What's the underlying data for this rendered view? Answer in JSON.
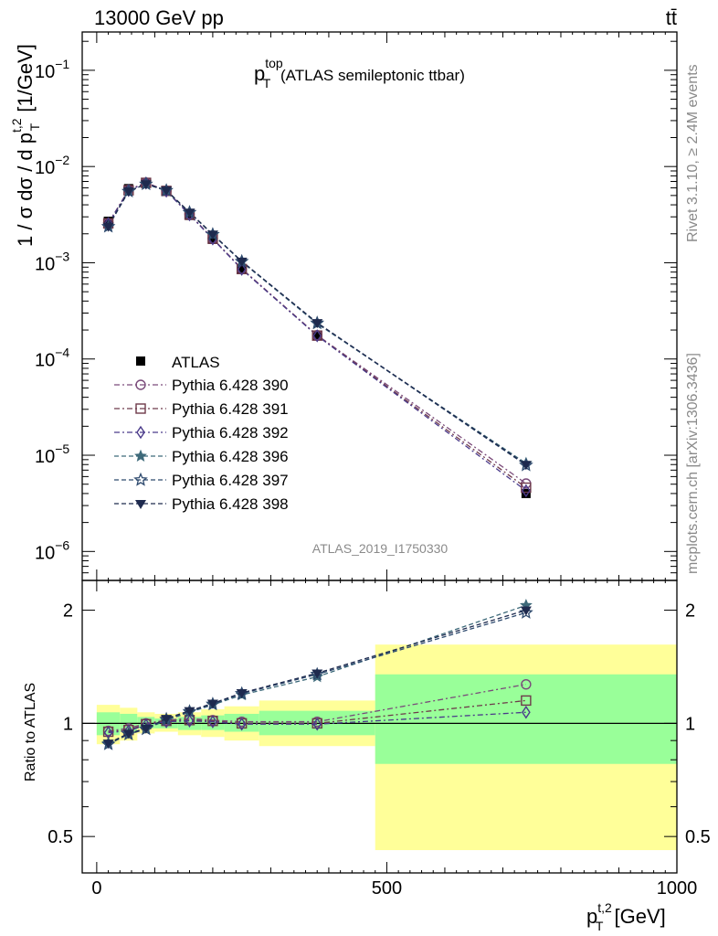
{
  "header": {
    "beam": "13000 GeV pp",
    "process": "tt̄",
    "rivet": "Rivet 3.1.10, ≥ 2.4M events",
    "mcplots": "mcplots.cern.ch [arXiv:1306.3436]",
    "analysis_id": "ATLAS_2019_I1750330"
  },
  "colors": {
    "band_inner": "#99ff99",
    "band_outer": "#ffff99",
    "data": "#000000"
  },
  "chart_data": {
    "type": "scatter",
    "title_main": "p",
    "title_sup": "top",
    "title_sub": "T",
    "title_rest": " (ATLAS semileptonic ttbar)",
    "xlabel_main": "p",
    "xlabel_sup": "t,2",
    "xlabel_sub": "T",
    "xlabel_rest": " [GeV]",
    "ylabel_main": "1 / σ dσ / d p",
    "ylabel_sup": "t,2",
    "ylabel_sub": "T",
    "ylabel_rest": " [1/GeV]",
    "ratio_ylabel": "Ratio to ATLAS",
    "xlim": [
      -25,
      1000
    ],
    "ylim": [
      5e-07,
      0.25
    ],
    "yscale": "log",
    "ratio_ylim": [
      0.4,
      2.4
    ],
    "ratio_yscale": "log",
    "x_ticks": [
      0,
      500,
      1000
    ],
    "y_ticks": [
      1e-06,
      1e-05,
      0.0001,
      0.001,
      0.01,
      0.1
    ],
    "y_tick_labels": [
      {
        "base": "10",
        "exp": "−6"
      },
      {
        "base": "10",
        "exp": "−5"
      },
      {
        "base": "10",
        "exp": "−4"
      },
      {
        "base": "10",
        "exp": "−3"
      },
      {
        "base": "10",
        "exp": "−2"
      },
      {
        "base": "10",
        "exp": "−1"
      }
    ],
    "ratio_ticks": [
      0.5,
      1,
      2
    ],
    "ratio_tick_labels": [
      "0.5",
      "1",
      "2"
    ],
    "legend_placement": "left-middle",
    "x": [
      20,
      55,
      85,
      120,
      160,
      200,
      250,
      380,
      740
    ],
    "bin_edges": [
      0,
      40,
      70,
      100,
      140,
      180,
      220,
      280,
      480,
      1000
    ],
    "data": {
      "name": "ATLAS",
      "values": [
        0.0027,
        0.0059,
        0.0068,
        0.0055,
        0.0031,
        0.00175,
        0.00086,
        0.000175,
        4e-06
      ],
      "ratio_band_inner": [
        [
          0.93,
          1.07
        ],
        [
          0.95,
          1.06
        ],
        [
          0.97,
          1.04
        ],
        [
          0.97,
          1.03
        ],
        [
          0.96,
          1.04
        ],
        [
          0.96,
          1.05
        ],
        [
          0.95,
          1.06
        ],
        [
          0.93,
          1.08
        ],
        [
          0.78,
          1.35
        ]
      ],
      "ratio_band_outer": [
        [
          0.88,
          1.12
        ],
        [
          0.9,
          1.1
        ],
        [
          0.94,
          1.07
        ],
        [
          0.95,
          1.06
        ],
        [
          0.93,
          1.07
        ],
        [
          0.92,
          1.09
        ],
        [
          0.9,
          1.11
        ],
        [
          0.87,
          1.15
        ],
        [
          0.46,
          1.62
        ]
      ]
    },
    "series": [
      {
        "name": "Pythia 6.428 390",
        "marker": "circle-open",
        "dash": "dashdot",
        "color": "#7a4a7a",
        "ratio": [
          0.955,
          0.97,
          1.0,
          1.02,
          1.03,
          1.02,
          1.01,
          1.01,
          1.27
        ]
      },
      {
        "name": "Pythia 6.428 391",
        "marker": "square-open",
        "dash": "dashdot",
        "color": "#6e3a4a",
        "ratio": [
          0.95,
          0.96,
          0.995,
          1.015,
          1.02,
          1.015,
          1.0,
          1.0,
          1.15
        ]
      },
      {
        "name": "Pythia 6.428 392",
        "marker": "diamond-open",
        "dash": "dashdot",
        "color": "#4a3a8a",
        "ratio": [
          0.945,
          0.955,
          0.99,
          1.01,
          1.015,
          1.01,
          0.995,
          0.995,
          1.07
        ]
      },
      {
        "name": "Pythia 6.428 396",
        "marker": "star-filled",
        "dash": "dashed",
        "color": "#3e6a7a",
        "ratio": [
          0.885,
          0.94,
          0.965,
          1.02,
          1.07,
          1.12,
          1.19,
          1.33,
          2.06
        ]
      },
      {
        "name": "Pythia 6.428 397",
        "marker": "star-open",
        "dash": "dashed",
        "color": "#2e4a6e",
        "ratio": [
          0.88,
          0.935,
          0.965,
          1.025,
          1.075,
          1.125,
          1.2,
          1.35,
          1.97
        ]
      },
      {
        "name": "Pythia 6.428 398",
        "marker": "triangle-down-filled",
        "dash": "dashed",
        "color": "#1e2a4e",
        "ratio": [
          0.885,
          0.94,
          0.97,
          1.03,
          1.08,
          1.13,
          1.205,
          1.36,
          2.0
        ]
      }
    ]
  }
}
